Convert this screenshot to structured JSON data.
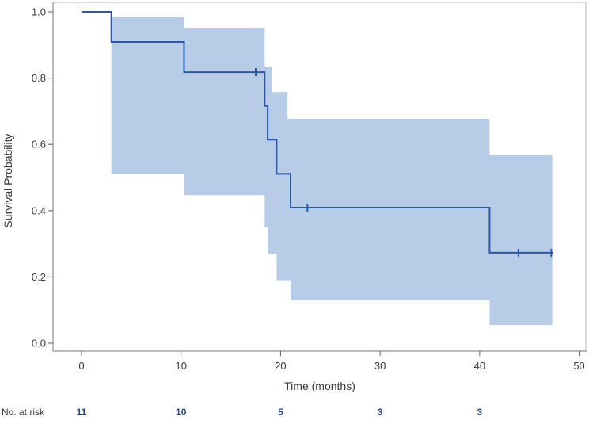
{
  "chart_data": {
    "type": "line",
    "subtype": "kaplan-meier-step",
    "title": "",
    "xlabel": "Time (months)",
    "ylabel": "Survival Probability",
    "xlim": [
      0,
      50
    ],
    "ylim": [
      0.0,
      1.0
    ],
    "x_ticks": [
      0,
      10,
      20,
      30,
      40,
      50
    ],
    "y_ticks": [
      1.0,
      0.8,
      0.6,
      0.4,
      0.2,
      0.0
    ],
    "grid": "off",
    "legend": "none",
    "survival_steps": [
      {
        "t": 0,
        "s": 1.0
      },
      {
        "t": 3,
        "s": 0.909
      },
      {
        "t": 10.3,
        "s": 0.818
      },
      {
        "t": 18.4,
        "s": 0.716
      },
      {
        "t": 18.7,
        "s": 0.614
      },
      {
        "t": 19.6,
        "s": 0.511
      },
      {
        "t": 21,
        "s": 0.409
      },
      {
        "t": 41,
        "s": 0.273
      }
    ],
    "curve_end_t": 47.4,
    "censor_marks": [
      {
        "t": 17.5,
        "s": 0.818
      },
      {
        "t": 22.7,
        "s": 0.409
      },
      {
        "t": 43.9,
        "s": 0.273
      },
      {
        "t": 47.2,
        "s": 0.273
      }
    ],
    "confidence_band": {
      "upper_steps": [
        {
          "t": 3,
          "v": 0.985
        },
        {
          "t": 10.3,
          "v": 0.952
        },
        {
          "t": 18.4,
          "v": 0.835
        },
        {
          "t": 19.1,
          "v": 0.758
        },
        {
          "t": 20.7,
          "v": 0.677
        },
        {
          "t": 41,
          "v": 0.569
        }
      ],
      "lower_steps": [
        {
          "t": 3,
          "v": 0.512
        },
        {
          "t": 10.3,
          "v": 0.447
        },
        {
          "t": 18.4,
          "v": 0.35
        },
        {
          "t": 18.7,
          "v": 0.27
        },
        {
          "t": 19.6,
          "v": 0.19
        },
        {
          "t": 21,
          "v": 0.13
        },
        {
          "t": 41,
          "v": 0.055
        }
      ],
      "end_t": 47.3
    },
    "risk_table": {
      "label": "No. at risk",
      "times": [
        0,
        10,
        20,
        30,
        40
      ],
      "counts": [
        11,
        10,
        5,
        3,
        3
      ]
    },
    "colors": {
      "line": "#2a57a9",
      "band": "#b7cce6",
      "risk_number": "#28478f",
      "text": "#3a3a3a",
      "frame_light": "#b4b4ba",
      "frame_dark": "#76767d",
      "tick": "#5e5e66"
    }
  }
}
